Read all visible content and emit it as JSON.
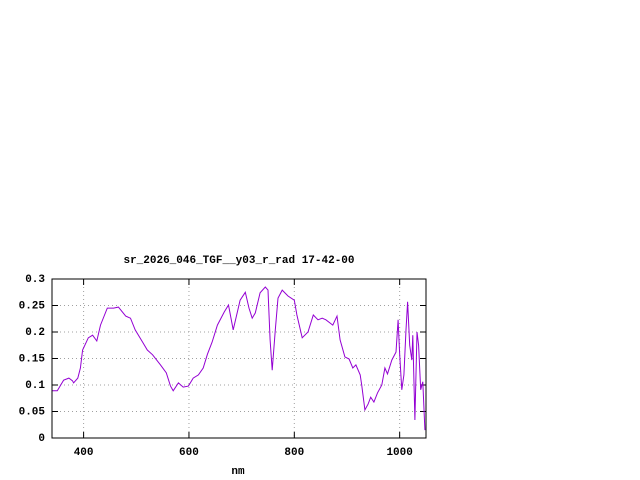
{
  "chart_data": {
    "type": "line",
    "title": "sr_2026_046_TGF__y03_r_rad 17-42-00",
    "xlabel": "nm",
    "xlim": [
      340,
      1050
    ],
    "ylim": [
      0,
      0.3
    ],
    "xticks": [
      400,
      600,
      800,
      1000
    ],
    "yticks": [
      0,
      0.05,
      0.1,
      0.15,
      0.2,
      0.25,
      0.3
    ],
    "grid": true,
    "series": [
      {
        "color": "#9400d3",
        "x": [
          341,
          350,
          362,
          372,
          379,
          381,
          389,
          394,
          398,
          409,
          417,
          425,
          432,
          445,
          457,
          466,
          480,
          489,
          498,
          512,
          521,
          531,
          546,
          557,
          565,
          570,
          580,
          589,
          599,
          608,
          618,
          627,
          635,
          644,
          654,
          667,
          675,
          684,
          690,
          697,
          707,
          714,
          720,
          726,
          735,
          745,
          750,
          754,
          758,
          764,
          769,
          777,
          788,
          800,
          805,
          815,
          826,
          836,
          845,
          853,
          860,
          873,
          881,
          887,
          896,
          904,
          911,
          917,
          925,
          928,
          934,
          940,
          945,
          951,
          958,
          966,
          972,
          977,
          985,
          993,
          997,
          1000,
          1004,
          1008,
          1012,
          1015,
          1019,
          1023,
          1025,
          1029,
          1033,
          1036,
          1040,
          1044,
          1048
        ],
        "values": [
          0.089,
          0.089,
          0.109,
          0.113,
          0.108,
          0.104,
          0.113,
          0.132,
          0.166,
          0.189,
          0.194,
          0.183,
          0.213,
          0.245,
          0.245,
          0.247,
          0.23,
          0.226,
          0.204,
          0.181,
          0.166,
          0.157,
          0.138,
          0.123,
          0.098,
          0.089,
          0.104,
          0.096,
          0.098,
          0.113,
          0.119,
          0.132,
          0.158,
          0.181,
          0.213,
          0.238,
          0.251,
          0.204,
          0.23,
          0.26,
          0.275,
          0.245,
          0.226,
          0.236,
          0.274,
          0.285,
          0.279,
          0.185,
          0.128,
          0.204,
          0.264,
          0.279,
          0.268,
          0.26,
          0.232,
          0.189,
          0.2,
          0.232,
          0.223,
          0.226,
          0.223,
          0.213,
          0.23,
          0.185,
          0.153,
          0.149,
          0.132,
          0.138,
          0.119,
          0.1,
          0.053,
          0.064,
          0.077,
          0.068,
          0.085,
          0.1,
          0.132,
          0.121,
          0.147,
          0.162,
          0.223,
          0.157,
          0.091,
          0.119,
          0.204,
          0.257,
          0.175,
          0.147,
          0.194,
          0.034,
          0.2,
          0.175,
          0.091,
          0.106,
          0.015
        ]
      }
    ]
  }
}
